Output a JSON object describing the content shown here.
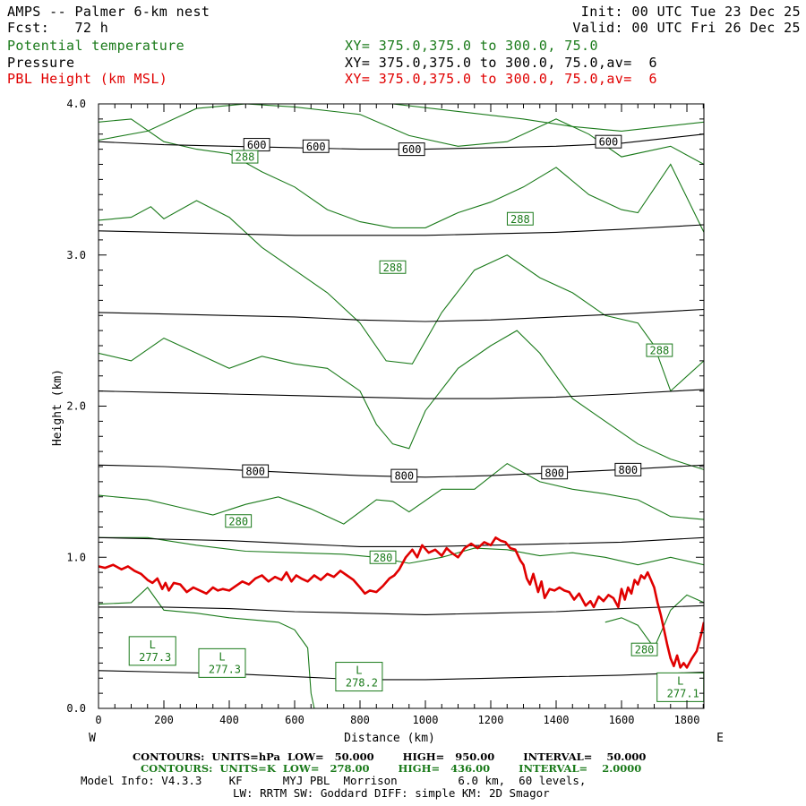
{
  "header": {
    "title": "AMPS -- Palmer 6-km nest",
    "forecast": "Fcst:   72 h",
    "init": "Init: 00 UTC Tue 23 Dec 25",
    "valid": "Valid: 00 UTC Fri 26 Dec 25",
    "rows": [
      {
        "field": "Potential temperature",
        "xy": "XY= 375.0,375.0 to 300.0, 75.0",
        "color": "#1a7a1a"
      },
      {
        "field": "Pressure",
        "xy": "XY= 375.0,375.0 to 300.0, 75.0,av=  6",
        "color": "#000000"
      },
      {
        "field": "PBL Height (km MSL)",
        "xy": "XY= 375.0,375.0 to 300.0, 75.0,av=  6",
        "color": "#e00000"
      }
    ]
  },
  "axis_text": {
    "west": "W",
    "east": "E"
  },
  "footer": {
    "pressure_contours": "CONTOURS:  UNITS=hPa  LOW=   50.000        HIGH=   950.00        INTERVAL=    50.000",
    "theta_contours": "CONTOURS:  UNITS=K  LOW=   278.00        HIGH=   436.00        INTERVAL=    2.0000",
    "model_info": "Model Info: V4.3.3    KF      MYJ PBL  Morrison         6.0 km,  60 levels,",
    "physics": "LW: RRTM SW: Goddard DIFF: simple KM: 2D Smagor"
  },
  "colors": {
    "theta": "#1a7a1a",
    "pressure": "#000000",
    "pbl": "#e00000"
  },
  "chart_data": {
    "type": "line",
    "xlabel": "Distance (km)",
    "ylabel": "Height (km)",
    "xlim": [
      0,
      1852
    ],
    "ylim": [
      0.0,
      4.0
    ],
    "xticks": [
      0,
      200,
      400,
      600,
      800,
      1000,
      1200,
      1400,
      1600,
      1800
    ],
    "yticks": [
      0.0,
      1.0,
      2.0,
      3.0,
      4.0
    ],
    "ytick_labels": [
      "0.0",
      "1.0",
      "2.0",
      "3.0",
      "4.0"
    ],
    "pressure_contours": [
      {
        "level": "600",
        "x": [
          0,
          200,
          400,
          600,
          800,
          1000,
          1200,
          1400,
          1600,
          1852
        ],
        "y": [
          3.75,
          3.73,
          3.72,
          3.71,
          3.7,
          3.7,
          3.71,
          3.72,
          3.74,
          3.8
        ]
      },
      {
        "level": "",
        "x": [
          0,
          200,
          400,
          600,
          800,
          1000,
          1200,
          1400,
          1600,
          1852
        ],
        "y": [
          3.16,
          3.15,
          3.14,
          3.13,
          3.13,
          3.13,
          3.14,
          3.15,
          3.17,
          3.2
        ]
      },
      {
        "level": "",
        "x": [
          0,
          200,
          400,
          600,
          800,
          1000,
          1200,
          1400,
          1600,
          1852
        ],
        "y": [
          2.62,
          2.61,
          2.6,
          2.59,
          2.57,
          2.56,
          2.57,
          2.59,
          2.61,
          2.64
        ]
      },
      {
        "level": "",
        "x": [
          0,
          200,
          400,
          600,
          800,
          1000,
          1200,
          1400,
          1600,
          1852
        ],
        "y": [
          2.1,
          2.09,
          2.08,
          2.07,
          2.06,
          2.05,
          2.05,
          2.06,
          2.08,
          2.11
        ]
      },
      {
        "level": "800",
        "x": [
          0,
          200,
          400,
          600,
          800,
          1000,
          1200,
          1400,
          1600,
          1852
        ],
        "y": [
          1.61,
          1.6,
          1.58,
          1.56,
          1.54,
          1.53,
          1.54,
          1.56,
          1.58,
          1.61
        ]
      },
      {
        "level": "",
        "x": [
          0,
          200,
          400,
          600,
          800,
          1000,
          1200,
          1400,
          1600,
          1852
        ],
        "y": [
          1.13,
          1.12,
          1.11,
          1.09,
          1.07,
          1.07,
          1.08,
          1.09,
          1.1,
          1.13
        ]
      },
      {
        "level": "",
        "x": [
          0,
          200,
          400,
          600,
          800,
          1000,
          1200,
          1400,
          1600,
          1852
        ],
        "y": [
          0.67,
          0.67,
          0.66,
          0.64,
          0.63,
          0.62,
          0.63,
          0.64,
          0.66,
          0.68
        ]
      },
      {
        "level": "",
        "x": [
          0,
          200,
          400,
          600,
          800,
          1000,
          1200,
          1400,
          1600,
          1852
        ],
        "y": [
          0.25,
          0.24,
          0.23,
          0.21,
          0.19,
          0.19,
          0.2,
          0.21,
          0.22,
          0.24
        ]
      }
    ],
    "pressure_labels": [
      {
        "text": "600",
        "x": 484,
        "y": 3.73
      },
      {
        "text": "600",
        "x": 665,
        "y": 3.72
      },
      {
        "text": "600",
        "x": 958,
        "y": 3.7
      },
      {
        "text": "600",
        "x": 1560,
        "y": 3.75
      },
      {
        "text": "800",
        "x": 480,
        "y": 1.57
      },
      {
        "text": "800",
        "x": 935,
        "y": 1.54
      },
      {
        "text": "800",
        "x": 1395,
        "y": 1.56
      },
      {
        "text": "800",
        "x": 1620,
        "y": 1.58
      }
    ],
    "theta_contours": [
      {
        "x": [
          0,
          400,
          900,
          1300,
          1450,
          1600,
          1852
        ],
        "y": [
          4.0,
          4.0,
          4.0,
          3.9,
          3.85,
          3.82,
          3.88
        ]
      },
      {
        "x": [
          0,
          150,
          300,
          450,
          600,
          800,
          950,
          1100,
          1250,
          1400,
          1500,
          1600,
          1750,
          1852
        ],
        "y": [
          3.76,
          3.82,
          3.97,
          4.0,
          3.98,
          3.93,
          3.79,
          3.72,
          3.75,
          3.9,
          3.8,
          3.65,
          3.72,
          3.6
        ]
      },
      {
        "x": [
          0,
          100,
          200,
          300,
          400,
          500,
          600,
          700,
          800,
          900,
          1000,
          1100,
          1200,
          1300,
          1400,
          1500,
          1600,
          1650,
          1750,
          1852
        ],
        "y": [
          3.88,
          3.9,
          3.75,
          3.7,
          3.67,
          3.55,
          3.45,
          3.3,
          3.22,
          3.18,
          3.18,
          3.28,
          3.35,
          3.45,
          3.58,
          3.4,
          3.3,
          3.28,
          3.6,
          3.15
        ]
      },
      {
        "x": [
          0,
          100,
          160,
          200,
          300,
          400,
          500,
          600,
          700,
          800,
          880,
          960,
          1050,
          1150,
          1250,
          1350,
          1450,
          1550,
          1650,
          1700,
          1750,
          1852
        ],
        "y": [
          3.23,
          3.25,
          3.32,
          3.24,
          3.36,
          3.25,
          3.05,
          2.9,
          2.75,
          2.55,
          2.3,
          2.28,
          2.62,
          2.9,
          3.0,
          2.85,
          2.75,
          2.6,
          2.55,
          2.4,
          2.1,
          2.3
        ]
      },
      {
        "x": [
          0,
          100,
          200,
          300,
          400,
          500,
          600,
          700,
          800,
          850,
          900,
          950,
          1000,
          1100,
          1200,
          1280,
          1350,
          1450,
          1550,
          1650,
          1750,
          1852
        ],
        "y": [
          2.35,
          2.3,
          2.45,
          2.35,
          2.25,
          2.33,
          2.28,
          2.25,
          2.1,
          1.88,
          1.75,
          1.72,
          1.97,
          2.25,
          2.4,
          2.5,
          2.35,
          2.05,
          1.9,
          1.75,
          1.65,
          1.58
        ]
      },
      {
        "x": [
          0,
          150,
          250,
          350,
          450,
          550,
          650,
          750,
          850,
          900,
          950,
          1050,
          1150,
          1250,
          1350,
          1450,
          1550,
          1650,
          1750,
          1852
        ],
        "y": [
          1.41,
          1.38,
          1.33,
          1.28,
          1.35,
          1.4,
          1.32,
          1.22,
          1.38,
          1.37,
          1.3,
          1.45,
          1.45,
          1.62,
          1.5,
          1.45,
          1.42,
          1.38,
          1.27,
          1.25
        ]
      },
      {
        "x": [
          0,
          150,
          300,
          450,
          600,
          750,
          850,
          950,
          1050,
          1150,
          1250,
          1350,
          1450,
          1550,
          1650,
          1750,
          1852
        ],
        "y": [
          1.13,
          1.13,
          1.08,
          1.04,
          1.03,
          1.02,
          1.0,
          0.96,
          1.0,
          1.06,
          1.05,
          1.01,
          1.03,
          1.0,
          0.95,
          1.0,
          0.95
        ]
      },
      {
        "x": [
          0,
          100,
          150,
          200,
          300,
          400,
          500,
          550,
          600,
          640,
          650,
          660
        ],
        "y": [
          0.69,
          0.7,
          0.8,
          0.65,
          0.63,
          0.6,
          0.58,
          0.57,
          0.52,
          0.4,
          0.1,
          0.0
        ]
      },
      {
        "x": [
          1550,
          1600,
          1650,
          1700,
          1750,
          1800,
          1852
        ],
        "y": [
          0.57,
          0.6,
          0.55,
          0.4,
          0.65,
          0.75,
          0.7
        ]
      }
    ],
    "theta_labels": [
      {
        "text": "288",
        "x": 448,
        "y": 3.65
      },
      {
        "text": "288",
        "x": 1290,
        "y": 3.24
      },
      {
        "text": "288",
        "x": 900,
        "y": 2.92
      },
      {
        "text": "288",
        "x": 1716,
        "y": 2.37
      },
      {
        "text": "280",
        "x": 428,
        "y": 1.24
      },
      {
        "text": "280",
        "x": 870,
        "y": 1.0
      },
      {
        "text": "280",
        "x": 1670,
        "y": 0.39
      }
    ],
    "lows": [
      {
        "label": "L",
        "value": "277.3",
        "x": 165,
        "y": 0.38
      },
      {
        "label": "L",
        "value": "277.3",
        "x": 378,
        "y": 0.3
      },
      {
        "label": "L",
        "value": "278.2",
        "x": 797,
        "y": 0.21
      },
      {
        "label": "L",
        "value": "277.1",
        "x": 1780,
        "y": 0.14
      }
    ],
    "series": [
      {
        "name": "PBL Height (km MSL)",
        "x": [
          0,
          20,
          45,
          70,
          90,
          110,
          130,
          150,
          165,
          180,
          195,
          205,
          215,
          230,
          250,
          270,
          290,
          310,
          330,
          350,
          365,
          380,
          400,
          420,
          440,
          460,
          480,
          500,
          520,
          540,
          560,
          575,
          590,
          605,
          620,
          640,
          660,
          680,
          700,
          720,
          740,
          760,
          780,
          800,
          815,
          830,
          850,
          870,
          890,
          905,
          920,
          940,
          960,
          975,
          990,
          1010,
          1030,
          1050,
          1065,
          1080,
          1100,
          1120,
          1140,
          1160,
          1180,
          1200,
          1215,
          1230,
          1245,
          1260,
          1275,
          1290,
          1300,
          1310,
          1320,
          1330,
          1345,
          1355,
          1365,
          1380,
          1395,
          1410,
          1425,
          1440,
          1455,
          1470,
          1490,
          1505,
          1515,
          1530,
          1545,
          1560,
          1575,
          1590,
          1600,
          1610,
          1620,
          1630,
          1640,
          1650,
          1660,
          1670,
          1680,
          1690,
          1700,
          1710,
          1720,
          1730,
          1740,
          1750,
          1760,
          1770,
          1780,
          1790,
          1800,
          1815,
          1830,
          1845,
          1852
        ],
        "y": [
          0.94,
          0.93,
          0.95,
          0.92,
          0.94,
          0.91,
          0.89,
          0.85,
          0.83,
          0.86,
          0.79,
          0.83,
          0.78,
          0.83,
          0.82,
          0.77,
          0.8,
          0.78,
          0.76,
          0.8,
          0.78,
          0.79,
          0.78,
          0.81,
          0.84,
          0.82,
          0.86,
          0.88,
          0.84,
          0.87,
          0.85,
          0.9,
          0.84,
          0.88,
          0.86,
          0.84,
          0.88,
          0.85,
          0.89,
          0.87,
          0.91,
          0.88,
          0.85,
          0.8,
          0.76,
          0.78,
          0.77,
          0.81,
          0.86,
          0.88,
          0.92,
          1.0,
          1.05,
          1.0,
          1.08,
          1.03,
          1.05,
          1.01,
          1.06,
          1.03,
          1.0,
          1.06,
          1.09,
          1.06,
          1.1,
          1.08,
          1.13,
          1.11,
          1.1,
          1.06,
          1.05,
          0.98,
          0.95,
          0.86,
          0.82,
          0.89,
          0.77,
          0.84,
          0.73,
          0.79,
          0.78,
          0.8,
          0.78,
          0.77,
          0.72,
          0.76,
          0.68,
          0.71,
          0.67,
          0.74,
          0.71,
          0.75,
          0.73,
          0.67,
          0.79,
          0.72,
          0.8,
          0.76,
          0.85,
          0.82,
          0.88,
          0.86,
          0.9,
          0.85,
          0.8,
          0.7,
          0.62,
          0.52,
          0.42,
          0.33,
          0.28,
          0.35,
          0.27,
          0.3,
          0.27,
          0.33,
          0.38,
          0.5,
          0.57
        ]
      }
    ]
  }
}
